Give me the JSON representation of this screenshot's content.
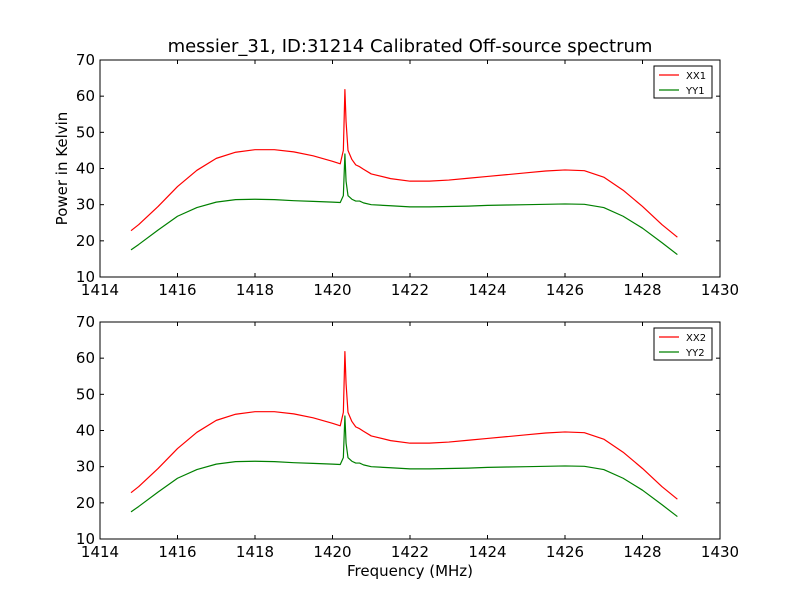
{
  "title": "messier_31, ID:31214 Calibrated Off-source spectrum",
  "chart_data": [
    {
      "type": "line",
      "title": "messier_31, ID:31214 Calibrated Off-source spectrum",
      "xlabel": "",
      "ylabel": "Power in Kelvin",
      "xlim": [
        1414,
        1430
      ],
      "ylim": [
        10,
        70
      ],
      "xticks": [
        "1414",
        "1416",
        "1418",
        "1420",
        "1422",
        "1424",
        "1426",
        "1428",
        "1430"
      ],
      "yticks": [
        "10",
        "20",
        "30",
        "40",
        "50",
        "60",
        "70"
      ],
      "legend": "top-right",
      "series": [
        {
          "name": "XX1",
          "color": "#ff0000",
          "x": [
            1414.8,
            1415.0,
            1415.5,
            1416.0,
            1416.5,
            1417.0,
            1417.5,
            1418.0,
            1418.5,
            1419.0,
            1419.5,
            1420.0,
            1420.2,
            1420.28,
            1420.32,
            1420.35,
            1420.4,
            1420.5,
            1420.6,
            1420.7,
            1420.8,
            1421.0,
            1421.5,
            1422.0,
            1422.5,
            1423.0,
            1423.5,
            1424.0,
            1424.5,
            1425.0,
            1425.5,
            1426.0,
            1426.5,
            1427.0,
            1427.5,
            1428.0,
            1428.5,
            1428.9
          ],
          "y": [
            22.8,
            24.5,
            29.5,
            35.0,
            39.5,
            42.8,
            44.5,
            45.2,
            45.2,
            44.6,
            43.5,
            42.0,
            41.3,
            45.0,
            61.8,
            53.0,
            45.0,
            42.5,
            41.0,
            40.5,
            39.8,
            38.5,
            37.2,
            36.5,
            36.5,
            36.8,
            37.3,
            37.8,
            38.3,
            38.8,
            39.3,
            39.6,
            39.4,
            37.6,
            34.0,
            29.5,
            24.5,
            21.0
          ]
        },
        {
          "name": "YY1",
          "color": "#008000",
          "x": [
            1414.8,
            1415.0,
            1415.5,
            1416.0,
            1416.5,
            1417.0,
            1417.5,
            1418.0,
            1418.5,
            1419.0,
            1419.5,
            1420.0,
            1420.2,
            1420.28,
            1420.32,
            1420.35,
            1420.4,
            1420.5,
            1420.6,
            1420.7,
            1420.8,
            1421.0,
            1421.5,
            1422.0,
            1422.5,
            1423.0,
            1423.5,
            1424.0,
            1424.5,
            1425.0,
            1425.5,
            1426.0,
            1426.5,
            1427.0,
            1427.5,
            1428.0,
            1428.5,
            1428.9
          ],
          "y": [
            17.5,
            19.0,
            23.0,
            26.8,
            29.2,
            30.7,
            31.4,
            31.5,
            31.4,
            31.1,
            30.9,
            30.7,
            30.6,
            32.5,
            44.0,
            36.5,
            32.5,
            31.5,
            31.0,
            31.0,
            30.5,
            30.0,
            29.7,
            29.4,
            29.4,
            29.5,
            29.6,
            29.8,
            29.9,
            30.0,
            30.1,
            30.2,
            30.1,
            29.2,
            26.8,
            23.5,
            19.5,
            16.2
          ]
        }
      ]
    },
    {
      "type": "line",
      "title": "",
      "xlabel": "Frequency (MHz)",
      "ylabel": "",
      "xlim": [
        1414,
        1430
      ],
      "ylim": [
        10,
        70
      ],
      "xticks": [
        "1414",
        "1416",
        "1418",
        "1420",
        "1422",
        "1424",
        "1426",
        "1428",
        "1430"
      ],
      "yticks": [
        "10",
        "20",
        "30",
        "40",
        "50",
        "60",
        "70"
      ],
      "legend": "top-right",
      "series": [
        {
          "name": "XX2",
          "color": "#ff0000",
          "x": [
            1414.8,
            1415.0,
            1415.5,
            1416.0,
            1416.5,
            1417.0,
            1417.5,
            1418.0,
            1418.5,
            1419.0,
            1419.5,
            1420.0,
            1420.2,
            1420.28,
            1420.32,
            1420.35,
            1420.4,
            1420.5,
            1420.6,
            1420.7,
            1420.8,
            1421.0,
            1421.5,
            1422.0,
            1422.5,
            1423.0,
            1423.5,
            1424.0,
            1424.5,
            1425.0,
            1425.5,
            1426.0,
            1426.5,
            1427.0,
            1427.5,
            1428.0,
            1428.5,
            1428.9
          ],
          "y": [
            22.8,
            24.5,
            29.5,
            35.0,
            39.5,
            42.8,
            44.5,
            45.2,
            45.2,
            44.6,
            43.5,
            42.0,
            41.3,
            45.0,
            61.8,
            53.0,
            45.0,
            42.5,
            41.0,
            40.5,
            39.8,
            38.5,
            37.2,
            36.5,
            36.5,
            36.8,
            37.3,
            37.8,
            38.3,
            38.8,
            39.3,
            39.6,
            39.4,
            37.6,
            34.0,
            29.5,
            24.5,
            21.0
          ]
        },
        {
          "name": "YY2",
          "color": "#008000",
          "x": [
            1414.8,
            1415.0,
            1415.5,
            1416.0,
            1416.5,
            1417.0,
            1417.5,
            1418.0,
            1418.5,
            1419.0,
            1419.5,
            1420.0,
            1420.2,
            1420.28,
            1420.32,
            1420.35,
            1420.4,
            1420.5,
            1420.6,
            1420.7,
            1420.8,
            1421.0,
            1421.5,
            1422.0,
            1422.5,
            1423.0,
            1423.5,
            1424.0,
            1424.5,
            1425.0,
            1425.5,
            1426.0,
            1426.5,
            1427.0,
            1427.5,
            1428.0,
            1428.5,
            1428.9
          ],
          "y": [
            17.5,
            19.0,
            23.0,
            26.8,
            29.2,
            30.7,
            31.4,
            31.5,
            31.4,
            31.1,
            30.9,
            30.7,
            30.6,
            32.5,
            44.0,
            36.5,
            32.5,
            31.5,
            31.0,
            31.0,
            30.5,
            30.0,
            29.7,
            29.4,
            29.4,
            29.5,
            29.6,
            29.8,
            29.9,
            30.0,
            30.1,
            30.2,
            30.1,
            29.2,
            26.8,
            23.5,
            19.5,
            16.2
          ]
        }
      ]
    }
  ]
}
